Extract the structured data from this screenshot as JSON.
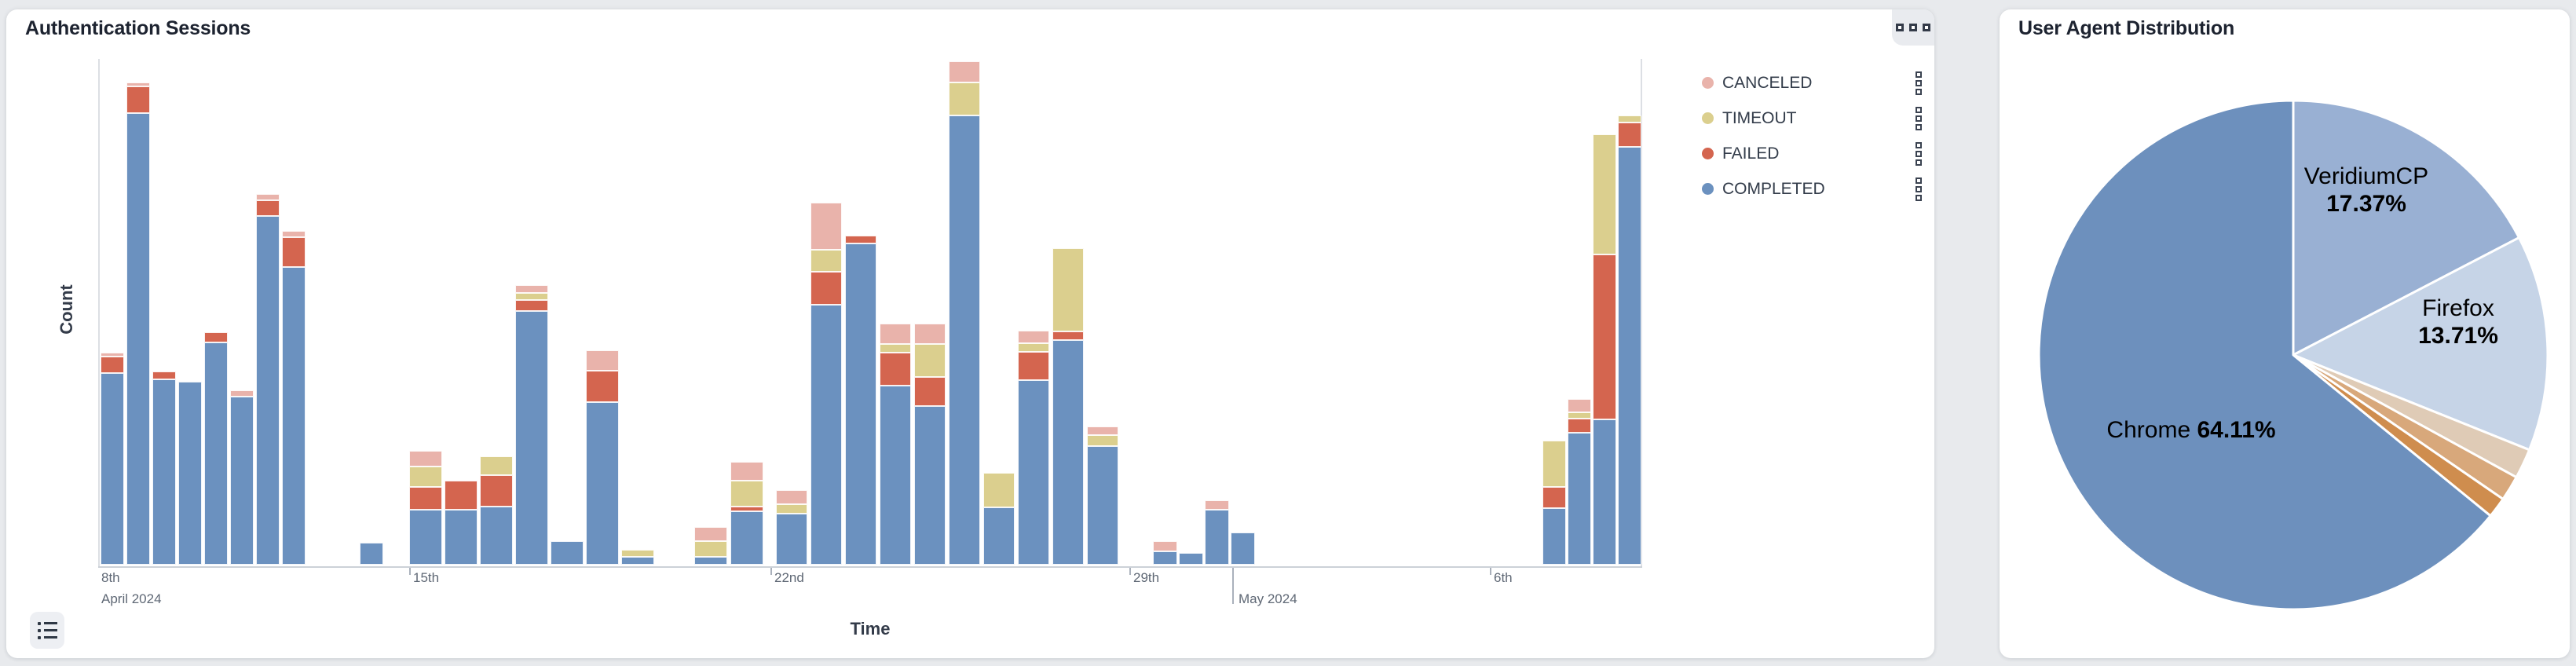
{
  "left_card": {
    "title": "Authentication Sessions",
    "xlabel": "Time",
    "ylabel": "Count",
    "legend": [
      {
        "label": "CANCELED",
        "color": "#e9b3ab"
      },
      {
        "label": "TIMEOUT",
        "color": "#dbcf8e"
      },
      {
        "label": "FAILED",
        "color": "#d4654f"
      },
      {
        "label": "COMPLETED",
        "color": "#6b91bf"
      }
    ]
  },
  "right_card": {
    "title": "User Agent Distribution",
    "labels": {
      "veridium_name": "VeridiumCP",
      "veridium_pct": "17.37%",
      "firefox_name": "Firefox",
      "firefox_pct": "13.71%",
      "chrome_name": "Chrome",
      "chrome_pct": "64.11%"
    }
  },
  "chart_data": [
    {
      "type": "bar",
      "stacked": true,
      "title": "Authentication Sessions",
      "xlabel": "Time",
      "ylabel": "Count",
      "grid": false,
      "y_axis_note": "no numeric tick labels shown; values are % of axis max",
      "ylim": [
        0,
        100
      ],
      "x_range": [
        "April 2024",
        "May 2024"
      ],
      "series_bottom_to_top": [
        {
          "name": "COMPLETED",
          "key": "completed",
          "color": "#6b91bf"
        },
        {
          "name": "FAILED",
          "key": "failed",
          "color": "#d4654f"
        },
        {
          "name": "TIMEOUT",
          "key": "timeout",
          "color": "#dbcf8e"
        },
        {
          "name": "CANCELED",
          "key": "canceled",
          "color": "#e9b3ab"
        }
      ],
      "x_ticks": [
        {
          "x": 3,
          "label": "8th",
          "label2": "April 2024",
          "tick": "none"
        },
        {
          "x": 396,
          "label": "15th",
          "label2": "",
          "tick": "short"
        },
        {
          "x": 856,
          "label": "22nd",
          "label2": "",
          "tick": "short"
        },
        {
          "x": 1313,
          "label": "29th",
          "label2": "",
          "tick": "short"
        },
        {
          "x": 1444,
          "label": "",
          "label2": "May 2024",
          "tick": "long"
        },
        {
          "x": 1772,
          "label": "6th",
          "label2": "",
          "tick": "short"
        }
      ],
      "bars": [
        {
          "x": 3,
          "w": 30,
          "completed": 37.8,
          "failed": 3.2,
          "timeout": 0,
          "canceled": 0.8
        },
        {
          "x": 36,
          "w": 30,
          "completed": 89.0,
          "failed": 5.2,
          "timeout": 0,
          "canceled": 0.8
        },
        {
          "x": 69,
          "w": 30,
          "completed": 36.6,
          "failed": 1.5,
          "timeout": 0,
          "canceled": 0
        },
        {
          "x": 102,
          "w": 30,
          "completed": 36.0,
          "failed": 0,
          "timeout": 0,
          "canceled": 0
        },
        {
          "x": 135,
          "w": 30,
          "completed": 43.8,
          "failed": 2.0,
          "timeout": 0,
          "canceled": 0
        },
        {
          "x": 168,
          "w": 30,
          "completed": 33.2,
          "failed": 0,
          "timeout": 0,
          "canceled": 1.2
        },
        {
          "x": 201,
          "w": 30,
          "completed": 68.8,
          "failed": 3.1,
          "timeout": 0,
          "canceled": 1.1
        },
        {
          "x": 234,
          "w": 30,
          "completed": 58.6,
          "failed": 6.0,
          "timeout": 0,
          "canceled": 1.2
        },
        {
          "x": 333,
          "w": 30,
          "completed": 4.3,
          "failed": 0,
          "timeout": 0,
          "canceled": 0
        },
        {
          "x": 396,
          "w": 42,
          "completed": 10.8,
          "failed": 4.5,
          "timeout": 4.0,
          "canceled": 3.2
        },
        {
          "x": 441,
          "w": 42,
          "completed": 10.8,
          "failed": 5.7,
          "timeout": 0,
          "canceled": 0
        },
        {
          "x": 486,
          "w": 42,
          "completed": 11.4,
          "failed": 6.3,
          "timeout": 3.7,
          "canceled": 0
        },
        {
          "x": 531,
          "w": 42,
          "completed": 50.0,
          "failed": 2.2,
          "timeout": 1.4,
          "canceled": 1.5
        },
        {
          "x": 576,
          "w": 42,
          "completed": 4.6,
          "failed": 0,
          "timeout": 0,
          "canceled": 0
        },
        {
          "x": 621,
          "w": 42,
          "completed": 32.1,
          "failed": 6.2,
          "timeout": 0,
          "canceled": 3.9
        },
        {
          "x": 666,
          "w": 42,
          "completed": 1.5,
          "failed": 0,
          "timeout": 1.4,
          "canceled": 0
        },
        {
          "x": 759,
          "w": 42,
          "completed": 1.5,
          "failed": 0,
          "timeout": 3.1,
          "canceled": 2.8
        },
        {
          "x": 805,
          "w": 42,
          "completed": 10.5,
          "failed": 0.9,
          "timeout": 5.2,
          "canceled": 3.7
        },
        {
          "x": 863,
          "w": 40,
          "completed": 10.0,
          "failed": 0,
          "timeout": 1.9,
          "canceled": 2.8
        },
        {
          "x": 907,
          "w": 40,
          "completed": 51.2,
          "failed": 6.6,
          "timeout": 4.3,
          "canceled": 9.3
        },
        {
          "x": 951,
          "w": 40,
          "completed": 63.3,
          "failed": 1.5,
          "timeout": 0,
          "canceled": 0
        },
        {
          "x": 995,
          "w": 40,
          "completed": 35.3,
          "failed": 6.5,
          "timeout": 1.7,
          "canceled": 4.0
        },
        {
          "x": 1039,
          "w": 40,
          "completed": 31.3,
          "failed": 5.7,
          "timeout": 6.5,
          "canceled": 4.0
        },
        {
          "x": 1083,
          "w": 40,
          "completed": 88.6,
          "failed": 0,
          "timeout": 6.5,
          "canceled": 4.2
        },
        {
          "x": 1127,
          "w": 40,
          "completed": 11.3,
          "failed": 0,
          "timeout": 6.8,
          "canceled": 0
        },
        {
          "x": 1171,
          "w": 40,
          "completed": 36.4,
          "failed": 5.6,
          "timeout": 1.7,
          "canceled": 2.5
        },
        {
          "x": 1215,
          "w": 40,
          "completed": 44.3,
          "failed": 1.7,
          "timeout": 16.4,
          "canceled": 0
        },
        {
          "x": 1259,
          "w": 40,
          "completed": 23.3,
          "failed": 0,
          "timeout": 2.3,
          "canceled": 1.7
        },
        {
          "x": 1343,
          "w": 31,
          "completed": 2.6,
          "failed": 0,
          "timeout": 0,
          "canceled": 2.0
        },
        {
          "x": 1376,
          "w": 31,
          "completed": 2.3,
          "failed": 0,
          "timeout": 0,
          "canceled": 0
        },
        {
          "x": 1409,
          "w": 31,
          "completed": 10.8,
          "failed": 0,
          "timeout": 0,
          "canceled": 1.9
        },
        {
          "x": 1442,
          "w": 31,
          "completed": 6.3,
          "failed": 0,
          "timeout": 0,
          "canceled": 0
        },
        {
          "x": 1839,
          "w": 30,
          "completed": 11.1,
          "failed": 4.2,
          "timeout": 9.1,
          "canceled": 0
        },
        {
          "x": 1871,
          "w": 30,
          "completed": 26.0,
          "failed": 2.8,
          "timeout": 1.3,
          "canceled": 2.6
        },
        {
          "x": 1903,
          "w": 30,
          "completed": 28.7,
          "failed": 32.4,
          "timeout": 23.8,
          "canceled": 0
        },
        {
          "x": 1935,
          "w": 30,
          "completed": 82.4,
          "failed": 4.8,
          "timeout": 1.4,
          "canceled": 0
        }
      ]
    },
    {
      "type": "pie",
      "title": "User Agent Distribution",
      "start": "12 o'clock, clockwise",
      "slices": [
        {
          "label": "VeridiumCP",
          "value": 17.37,
          "color": "#99b0d3",
          "label_shown": true
        },
        {
          "label": "Firefox",
          "value": 13.71,
          "color": "#c6d4e7",
          "label_shown": true
        },
        {
          "label": "",
          "value": 1.9,
          "color": "#dfcbb6",
          "label_shown": false
        },
        {
          "label": "",
          "value": 1.6,
          "color": "#d8a87b",
          "label_shown": false
        },
        {
          "label": "",
          "value": 1.31,
          "color": "#cf8d4e",
          "label_shown": false
        },
        {
          "label": "Chrome",
          "value": 64.11,
          "color": "#6d90bd",
          "label_shown": true
        }
      ]
    }
  ]
}
